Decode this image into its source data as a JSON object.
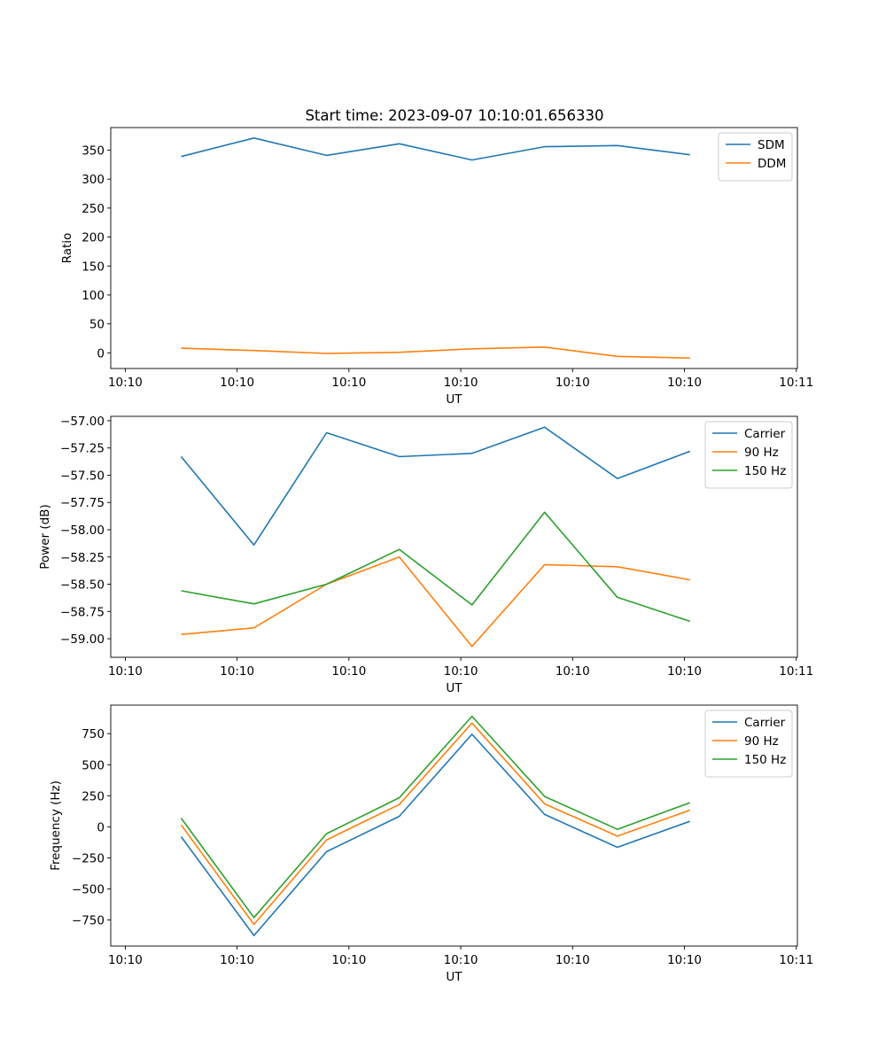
{
  "figure": {
    "title": "Start time: 2023-09-07 10:10:01.656330"
  },
  "chart_data": [
    {
      "type": "line",
      "title": "Start time: 2023-09-07 10:10:01.656330",
      "xlabel": "UT",
      "ylabel": "Ratio",
      "xlim": [
        -0.13,
        6.01
      ],
      "ylim": [
        -27,
        389
      ],
      "x": [
        0.5,
        1.15,
        1.8,
        2.45,
        3.1,
        3.75,
        4.4,
        5.05
      ],
      "x_ticks": [
        0,
        1,
        2,
        3,
        4,
        5,
        6
      ],
      "x_tick_labels": [
        "10:10",
        "10:10",
        "10:10",
        "10:10",
        "10:10",
        "10:10",
        "10:11"
      ],
      "y_ticks": [
        0,
        50,
        100,
        150,
        200,
        250,
        300,
        350
      ],
      "y_tick_labels": [
        "0",
        "50",
        "100",
        "150",
        "200",
        "250",
        "300",
        "350"
      ],
      "legend_position": "top-right",
      "series": [
        {
          "name": "SDM",
          "color": "#1f77b4",
          "values": [
            339,
            371,
            341,
            361,
            333,
            356,
            358,
            342
          ]
        },
        {
          "name": "DDM",
          "color": "#ff7f0e",
          "values": [
            8,
            4,
            -1,
            1,
            7,
            10,
            -6,
            -9
          ]
        }
      ]
    },
    {
      "type": "line",
      "xlabel": "UT",
      "ylabel": "Power (dB)",
      "xlim": [
        -0.13,
        6.01
      ],
      "ylim": [
        -59.17,
        -56.96
      ],
      "x": [
        0.5,
        1.15,
        1.8,
        2.45,
        3.1,
        3.75,
        4.4,
        5.05
      ],
      "x_ticks": [
        0,
        1,
        2,
        3,
        4,
        5,
        6
      ],
      "x_tick_labels": [
        "10:10",
        "10:10",
        "10:10",
        "10:10",
        "10:10",
        "10:10",
        "10:11"
      ],
      "y_ticks": [
        -59.0,
        -58.75,
        -58.5,
        -58.25,
        -58.0,
        -57.75,
        -57.5,
        -57.25,
        -57.0
      ],
      "y_tick_labels": [
        "−59.00",
        "−58.75",
        "−58.50",
        "−58.25",
        "−58.00",
        "−57.75",
        "−57.50",
        "−57.25",
        "−57.00"
      ],
      "legend_position": "top-right",
      "series": [
        {
          "name": "Carrier",
          "color": "#1f77b4",
          "values": [
            -57.33,
            -58.14,
            -57.11,
            -57.33,
            -57.3,
            -57.06,
            -57.53,
            -57.28
          ]
        },
        {
          "name": "90 Hz",
          "color": "#ff7f0e",
          "values": [
            -58.96,
            -58.9,
            -58.5,
            -58.25,
            -59.07,
            -58.32,
            -58.34,
            -58.46
          ]
        },
        {
          "name": "150 Hz",
          "color": "#2ca02c",
          "values": [
            -58.56,
            -58.68,
            -58.5,
            -58.18,
            -58.69,
            -57.84,
            -58.62,
            -58.84
          ]
        }
      ]
    },
    {
      "type": "line",
      "xlabel": "UT",
      "ylabel": "Frequency (Hz)",
      "xlim": [
        -0.13,
        6.01
      ],
      "ylim": [
        -960,
        980
      ],
      "x": [
        0.5,
        1.15,
        1.8,
        2.45,
        3.1,
        3.75,
        4.4,
        5.05
      ],
      "x_ticks": [
        0,
        1,
        2,
        3,
        4,
        5,
        6
      ],
      "x_tick_labels": [
        "10:10",
        "10:10",
        "10:10",
        "10:10",
        "10:10",
        "10:10",
        "10:11"
      ],
      "y_ticks": [
        -750,
        -500,
        -250,
        0,
        250,
        500,
        750
      ],
      "y_tick_labels": [
        "−750",
        "−500",
        "−250",
        "0",
        "250",
        "500",
        "750"
      ],
      "legend_position": "top-right",
      "series": [
        {
          "name": "Carrier",
          "color": "#1f77b4",
          "values": [
            -80,
            -875,
            -200,
            85,
            745,
            100,
            -165,
            45
          ]
        },
        {
          "name": "90 Hz",
          "color": "#ff7f0e",
          "values": [
            15,
            -785,
            -105,
            180,
            835,
            185,
            -75,
            135
          ]
        },
        {
          "name": "150 Hz",
          "color": "#2ca02c",
          "values": [
            70,
            -730,
            -55,
            235,
            890,
            245,
            -20,
            195
          ]
        }
      ]
    }
  ]
}
